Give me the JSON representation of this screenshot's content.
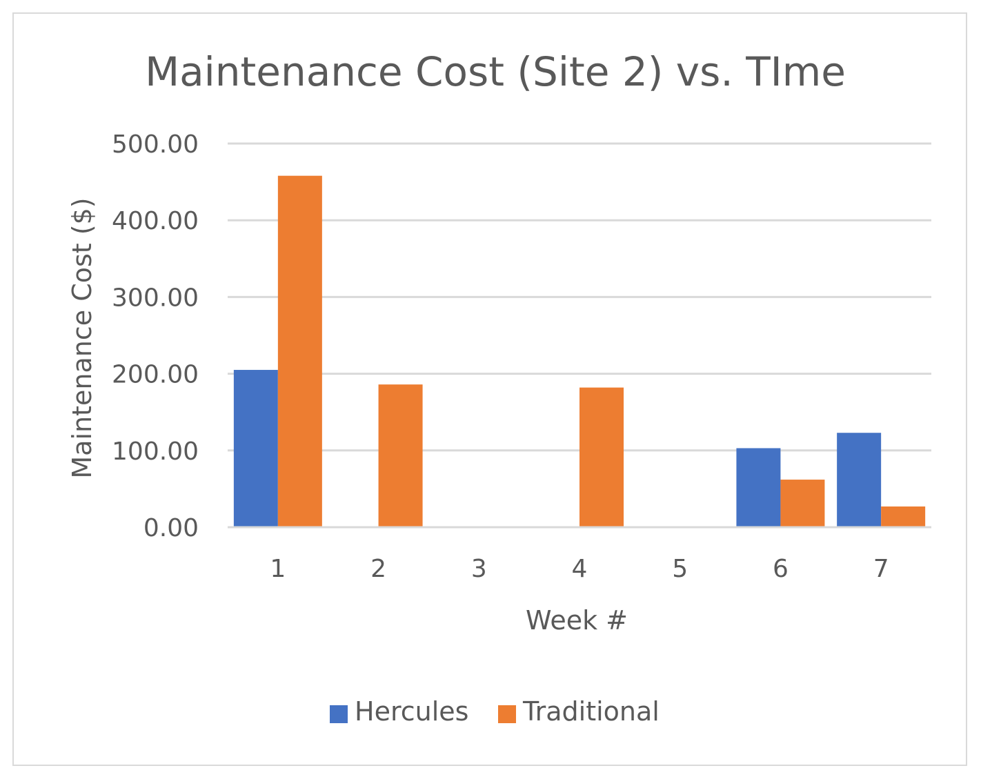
{
  "chart_data": {
    "type": "bar",
    "title": "Maintenance Cost (Site 2) vs. TIme",
    "xlabel": "Week #",
    "ylabel": "Maintenance Cost ($)",
    "categories": [
      "1",
      "2",
      "3",
      "4",
      "5",
      "6",
      "7"
    ],
    "ylim": [
      0,
      500
    ],
    "yticks": [
      "0.00",
      "100.00",
      "200.00",
      "300.00",
      "400.00",
      "500.00"
    ],
    "grid": true,
    "legend_position": "bottom",
    "series": [
      {
        "name": "Hercules",
        "color": "#4472c4",
        "values": [
          205,
          0,
          0,
          0,
          0,
          103,
          123
        ]
      },
      {
        "name": "Traditional",
        "color": "#ed7d31",
        "values": [
          458,
          186,
          0,
          182,
          0,
          62,
          27
        ]
      }
    ]
  }
}
